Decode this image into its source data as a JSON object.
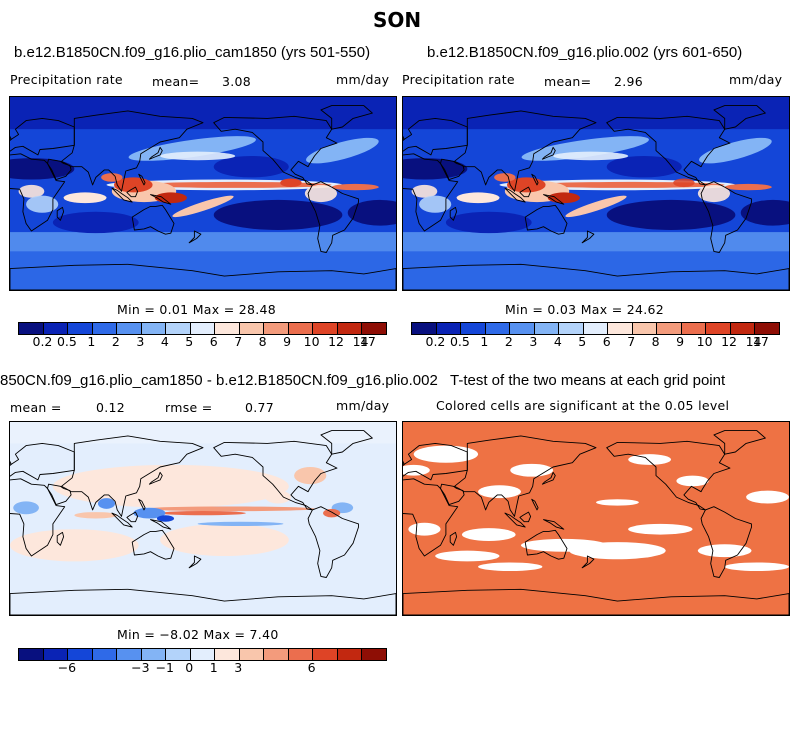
{
  "page": {
    "title": "SON"
  },
  "palettes": {
    "precip": [
      "#08107f",
      "#0a23b5",
      "#1446d8",
      "#2f6ae8",
      "#5791f0",
      "#83b4f5",
      "#b3d3fa",
      "#e3eefd",
      "#fde7dc",
      "#f9c6ac",
      "#f39b7c",
      "#eb6e4e",
      "#de4426",
      "#c22810",
      "#8e0e05"
    ],
    "diff": [
      "#08107f",
      "#0a23b5",
      "#1446d8",
      "#2f6ae8",
      "#5791f0",
      "#83b4f5",
      "#b3d3fa",
      "#e3eefd",
      "#fde7dc",
      "#f9c6ac",
      "#f39b7c",
      "#eb6e4e",
      "#de4426",
      "#c22810",
      "#8e0e05"
    ],
    "ttest_fill": "#ee7244"
  },
  "panels": {
    "p1": {
      "title": "b.e12.B1850CN.f09_g16.plio_cam1850 (yrs 501-550)",
      "left_label": "Precipitation rate",
      "mean_label": "mean=",
      "mean_value": "3.08",
      "units": "mm/day",
      "minmax": "Min =   0.01 Max =  28.48"
    },
    "p2": {
      "title": "b.e12.B1850CN.f09_g16.plio.002 (yrs 601-650)",
      "left_label": "Precipitation rate",
      "mean_label": "mean=",
      "mean_value": "2.96",
      "units": "mm/day",
      "minmax": "Min =   0.03 Max =  24.62"
    },
    "p3": {
      "title": "850CN.f09_g16.plio_cam1850 - b.e12.B1850CN.f09_g16.plio.002",
      "mean_label": "mean =",
      "mean_value": "0.12",
      "rmse_label": "rmse =",
      "rmse_value": "0.77",
      "units": "mm/day",
      "minmax": "Min =  −8.02 Max =   7.40"
    },
    "p4": {
      "title": "T-test of the two means at each grid point",
      "subtitle": "Colored cells are significant at the 0.05 level"
    }
  },
  "chart_data": [
    {
      "type": "heatmap",
      "title": "b.e12.B1850CN.f09_g16.plio_cam1850 (yrs 501-550)",
      "variable": "Precipitation rate",
      "units": "mm/day",
      "mean": 3.08,
      "min": 0.01,
      "max": 28.48,
      "colorbar_labels": [
        "0.2",
        "0.5",
        "1",
        "2",
        "3",
        "4",
        "5",
        "6",
        "7",
        "8",
        "9",
        "10",
        "12",
        "14",
        "17"
      ]
    },
    {
      "type": "heatmap",
      "title": "b.e12.B1850CN.f09_g16.plio.002 (yrs 601-650)",
      "variable": "Precipitation rate",
      "units": "mm/day",
      "mean": 2.96,
      "min": 0.03,
      "max": 24.62,
      "colorbar_labels": [
        "0.2",
        "0.5",
        "1",
        "2",
        "3",
        "4",
        "5",
        "6",
        "7",
        "8",
        "9",
        "10",
        "12",
        "14",
        "17"
      ]
    },
    {
      "type": "heatmap",
      "title": "850CN.f09_g16.plio_cam1850 - b.e12.B1850CN.f09_g16.plio.002",
      "units": "mm/day",
      "mean": 0.12,
      "rmse": 0.77,
      "min": -8.02,
      "max": 7.4,
      "colorbar_labels": [
        "−6",
        "−3",
        "−1",
        "0",
        "1",
        "3",
        "6"
      ]
    },
    {
      "type": "heatmap",
      "title": "T-test of the two means at each grid point",
      "subtitle": "Colored cells are significant at the 0.05 level"
    }
  ]
}
